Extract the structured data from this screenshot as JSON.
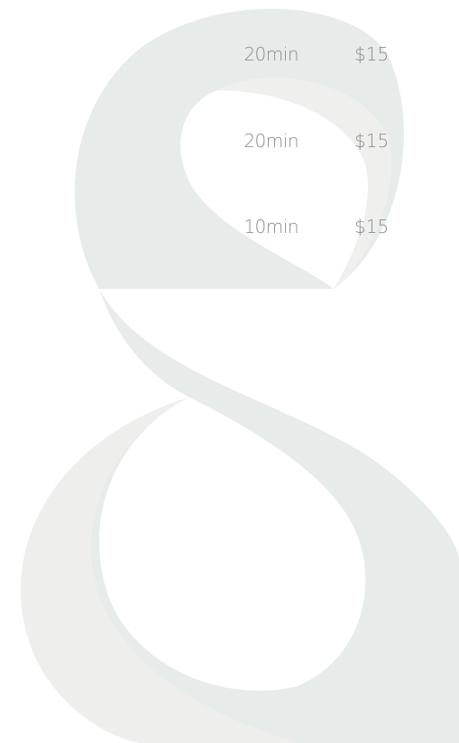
{
  "services": [
    {
      "duration": "20min",
      "price": "$15"
    },
    {
      "duration": "20min",
      "price": "$15"
    },
    {
      "duration": "10min",
      "price": "$15"
    }
  ]
}
